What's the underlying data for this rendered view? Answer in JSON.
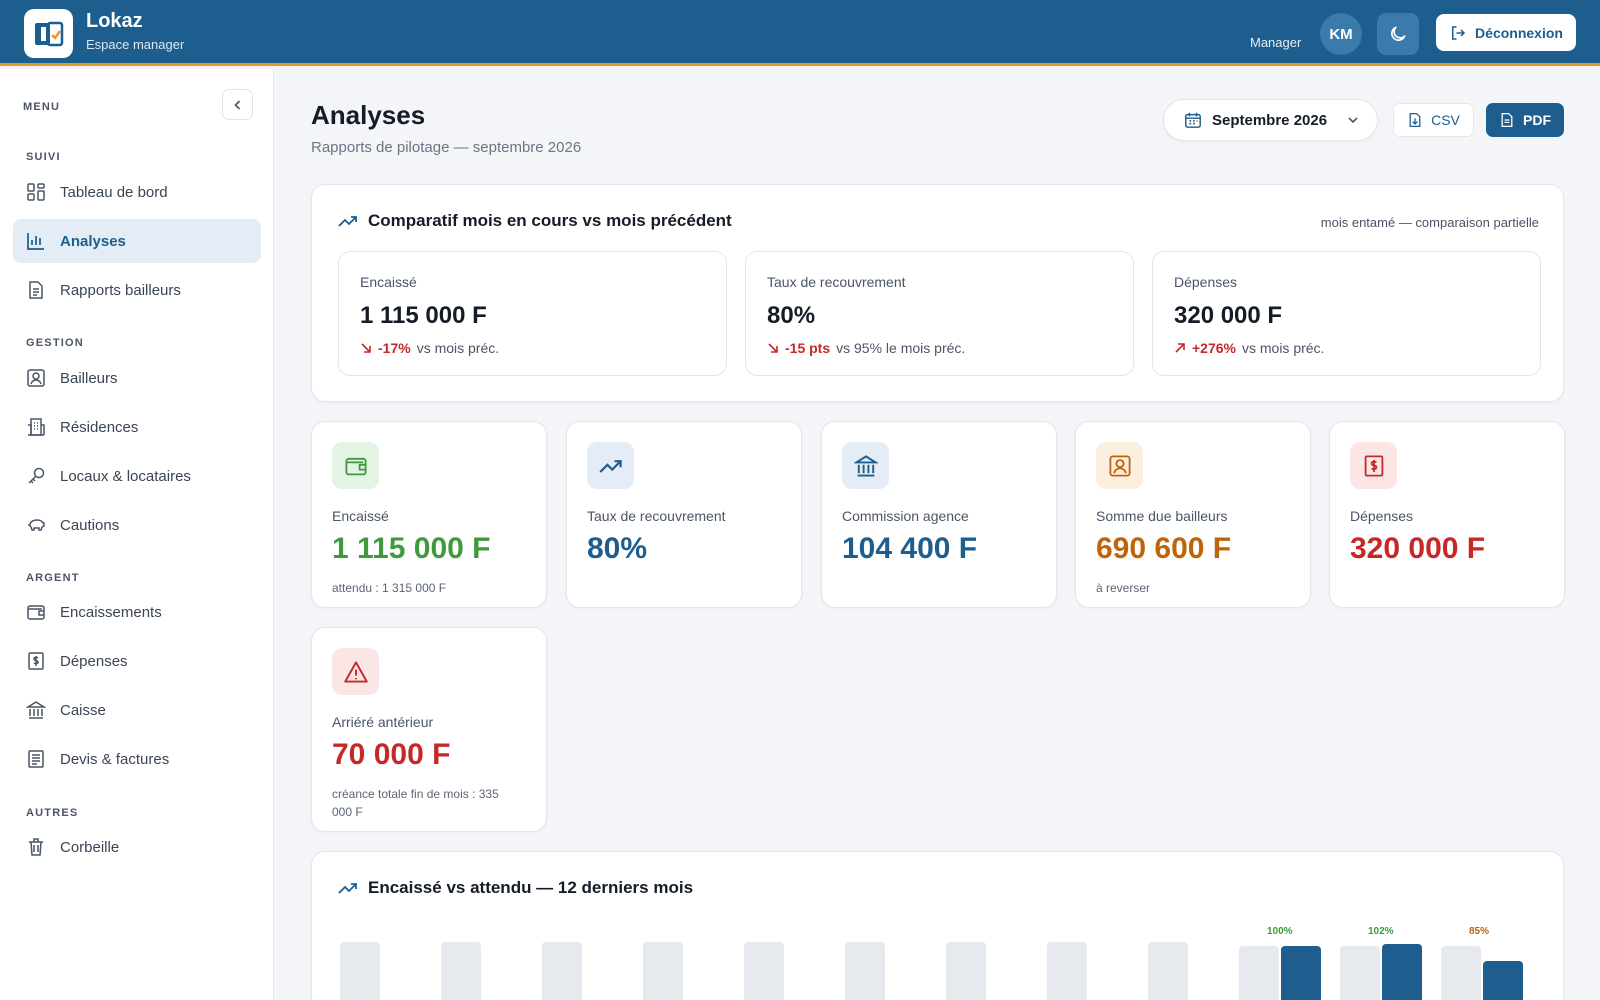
{
  "app": {
    "name": "Lokaz",
    "subtitle": "Espace manager"
  },
  "header": {
    "role": "Manager",
    "avatar_initials": "KM",
    "logout_label": "Déconnexion"
  },
  "sidebar": {
    "menu_title": "MENU",
    "sections": [
      {
        "label": "SUIVI",
        "items": [
          {
            "label": "Tableau de bord",
            "icon": "dashboard-icon"
          },
          {
            "label": "Analyses",
            "icon": "chart-icon",
            "active": true
          },
          {
            "label": "Rapports bailleurs",
            "icon": "report-icon"
          }
        ]
      },
      {
        "label": "GESTION",
        "items": [
          {
            "label": "Bailleurs",
            "icon": "landlord-icon"
          },
          {
            "label": "Résidences",
            "icon": "building-icon"
          },
          {
            "label": "Locaux & locataires",
            "icon": "key-icon"
          },
          {
            "label": "Cautions",
            "icon": "piggy-bank-icon"
          }
        ]
      },
      {
        "label": "ARGENT",
        "items": [
          {
            "label": "Encaissements",
            "icon": "wallet-icon"
          },
          {
            "label": "Dépenses",
            "icon": "expense-icon"
          },
          {
            "label": "Caisse",
            "icon": "bank-icon"
          },
          {
            "label": "Devis & factures",
            "icon": "invoice-icon"
          }
        ]
      },
      {
        "label": "AUTRES",
        "items": [
          {
            "label": "Corbeille",
            "icon": "trash-icon"
          }
        ]
      }
    ]
  },
  "page": {
    "title": "Analyses",
    "subtitle": "Rapports de pilotage — septembre 2026",
    "month_selector": "Septembre 2026",
    "csv_label": "CSV",
    "pdf_label": "PDF"
  },
  "comparison": {
    "title": "Comparatif mois en cours vs mois précédent",
    "note": "mois entamé — comparaison partielle",
    "cards": [
      {
        "label": "Encaissé",
        "value": "1 115 000 F",
        "delta": "-17%",
        "delta_text": "vs mois préc.",
        "direction": "down"
      },
      {
        "label": "Taux de recouvrement",
        "value": "80%",
        "delta": "-15 pts",
        "delta_text": "vs 95% le mois préc.",
        "direction": "down"
      },
      {
        "label": "Dépenses",
        "value": "320 000 F",
        "delta": "+276%",
        "delta_text": "vs mois préc.",
        "direction": "up"
      }
    ]
  },
  "kpis": [
    {
      "label": "Encaissé",
      "value": "1 115 000 F",
      "sub": "attendu : 1 315 000 F",
      "color": "#3f9a3f",
      "icon_bg": "#e3f3e4",
      "icon": "wallet-icon"
    },
    {
      "label": "Taux de recouvrement",
      "value": "80%",
      "sub": "",
      "color": "#1d5e8e",
      "icon_bg": "#e4edf5",
      "icon": "trend-up-icon"
    },
    {
      "label": "Commission agence",
      "value": "104 400 F",
      "sub": "",
      "color": "#1d5e8e",
      "icon_bg": "#e4edf5",
      "icon": "bank-icon"
    },
    {
      "label": "Somme due bailleurs",
      "value": "690 600 F",
      "sub": "à reverser",
      "color": "#c0640a",
      "icon_bg": "#fcefe0",
      "icon": "landlord-icon"
    },
    {
      "label": "Dépenses",
      "value": "320 000 F",
      "sub": "",
      "color": "#c62828",
      "icon_bg": "#fbe6e6",
      "icon": "expense-icon"
    },
    {
      "label": "Arriéré antérieur",
      "value": "70 000 F",
      "sub": "créance totale fin de mois : 335 000 F",
      "color": "#c62828",
      "icon_bg": "#fbe6e6",
      "icon": "warning-icon"
    }
  ],
  "chart_data": {
    "type": "bar",
    "title": "Encaissé vs attendu — 12 derniers mois",
    "series": [
      {
        "name": "attendu",
        "values": [
          1,
          1,
          1,
          1,
          1,
          1,
          1,
          1,
          1,
          1,
          1,
          1
        ]
      },
      {
        "name": "encaissé",
        "values": [
          null,
          null,
          null,
          null,
          null,
          null,
          null,
          null,
          null,
          1.0,
          1.02,
          0.85
        ]
      }
    ],
    "data_labels": [
      null,
      null,
      null,
      null,
      null,
      null,
      null,
      null,
      null,
      "100%",
      "102%",
      "85%"
    ],
    "label_colors": [
      "#3f9a3f",
      "#3f9a3f",
      "#c0640a"
    ],
    "colors": {
      "attendu": "#e6e9ee",
      "encaissé": "#1d5e8e"
    }
  }
}
